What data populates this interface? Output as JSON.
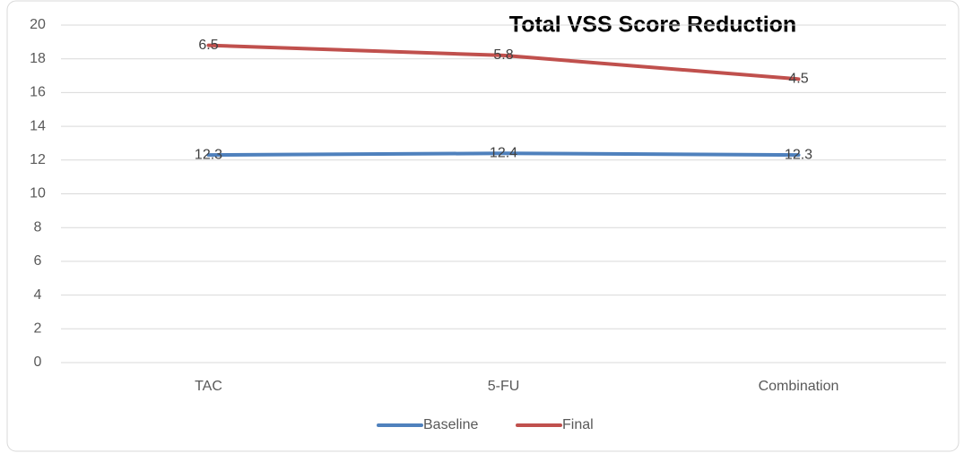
{
  "chart_data": {
    "type": "line",
    "title": "Total VSS Score Reduction",
    "categories": [
      "TAC",
      "5-FU",
      "Combination"
    ],
    "stacked": true,
    "series": [
      {
        "name": "Baseline",
        "color": "#4f81bd",
        "values": [
          12.3,
          12.4,
          12.3
        ]
      },
      {
        "name": "Final",
        "color": "#c0504d",
        "values": [
          6.5,
          5.8,
          4.5
        ]
      }
    ],
    "ylim": [
      0,
      20
    ],
    "yticks": [
      0,
      2,
      4,
      6,
      8,
      10,
      12,
      14,
      16,
      18,
      20
    ],
    "grid": true,
    "legend": "bottom"
  }
}
